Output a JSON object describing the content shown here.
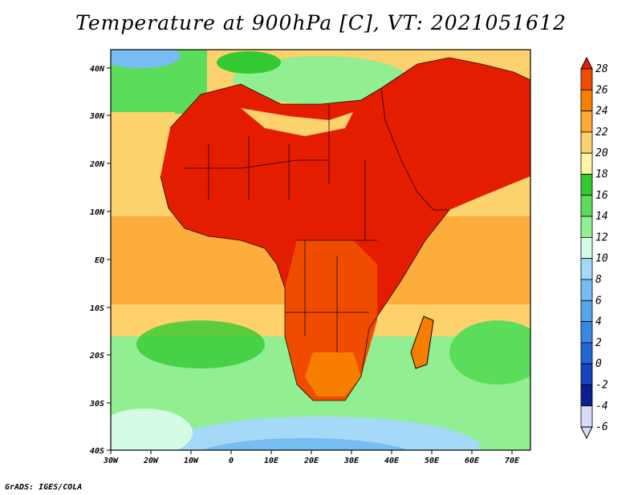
{
  "title": "Temperature at 900hPa [C], VT: 2021051612",
  "credit": "GrADS: IGES/COLA",
  "map": {
    "lon_range": [
      -30,
      75
    ],
    "lat_range": [
      -40,
      45
    ],
    "x_ticks": [
      "30W",
      "20W",
      "10W",
      "0",
      "10E",
      "20E",
      "30E",
      "40E",
      "50E",
      "60E",
      "70E"
    ],
    "y_ticks": [
      "40N",
      "30N",
      "20N",
      "10N",
      "EQ",
      "10S",
      "20S",
      "30S",
      "40S"
    ]
  },
  "colorbar": {
    "labels": [
      "28",
      "26",
      "24",
      "22",
      "20",
      "18",
      "16",
      "14",
      "12",
      "10",
      "8",
      "6",
      "4",
      "2",
      "0",
      "-2",
      "-4",
      "-6"
    ],
    "colors": [
      "#e51d00",
      "#f04c00",
      "#f87e00",
      "#fca734",
      "#fdd16b",
      "#fff3a6",
      "#33c933",
      "#5bdc5b",
      "#91ee91",
      "#d6fbe4",
      "#a4d9f7",
      "#77bdf2",
      "#56a4ea",
      "#3a86e1",
      "#2366d3",
      "#1346c0",
      "#0b1f8e",
      "#d8dcf6"
    ]
  }
}
